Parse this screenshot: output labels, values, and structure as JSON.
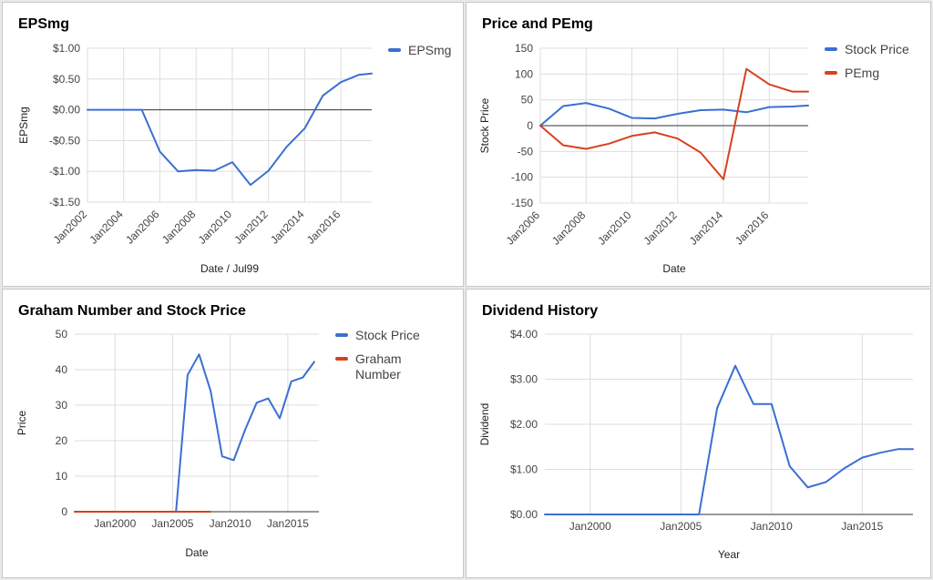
{
  "chart_data": [
    {
      "id": "eps",
      "type": "line",
      "title": "EPSmg",
      "xlabel": "Date / Jul99",
      "ylabel": "EPSmg",
      "x_tick_labels": [
        "Jan2002",
        "Jan2004",
        "Jan2006",
        "Jan2008",
        "Jan2010",
        "Jan2012",
        "Jan2014",
        "Jan2016"
      ],
      "x_tick_values": [
        2002,
        2004,
        2006,
        2008,
        2010,
        2012,
        2014,
        2016
      ],
      "x_range": [
        2002,
        2017.7
      ],
      "y_tick_labels": [
        "$1.00",
        "$0.50",
        "$0.00",
        "-$0.50",
        "-$1.00",
        "-$1.50"
      ],
      "y_tick_values": [
        1,
        0.5,
        0,
        -0.5,
        -1,
        -1.5
      ],
      "ylim": [
        -1.5,
        1
      ],
      "grid": true,
      "zero_line": true,
      "legend_position": "right",
      "series": [
        {
          "name": "EPSmg",
          "color": "#3b6fd1",
          "x": [
            2002,
            2003,
            2004,
            2005,
            2006,
            2007,
            2008,
            2009,
            2010,
            2011,
            2012,
            2013,
            2014,
            2015,
            2016,
            2017,
            2017.7
          ],
          "y": [
            0,
            0,
            0,
            0,
            -0.68,
            -1.0,
            -0.98,
            -0.99,
            -0.85,
            -1.22,
            -0.99,
            -0.6,
            -0.3,
            0.23,
            0.45,
            0.57,
            0.59
          ]
        }
      ]
    },
    {
      "id": "pe",
      "type": "line",
      "title": "Price and PEmg",
      "xlabel": "Date",
      "ylabel": "Stock Price",
      "x_tick_labels": [
        "Jan2006",
        "Jan2008",
        "Jan2010",
        "Jan2012",
        "Jan2014",
        "Jan2016"
      ],
      "x_tick_values": [
        2006,
        2008,
        2010,
        2012,
        2014,
        2016
      ],
      "x_range": [
        2006,
        2017.7
      ],
      "y_tick_labels": [
        "150",
        "100",
        "50",
        "0",
        "-50",
        "-100",
        "-150"
      ],
      "y_tick_values": [
        150,
        100,
        50,
        0,
        -50,
        -100,
        -150
      ],
      "ylim": [
        -150,
        150
      ],
      "grid": true,
      "zero_line": true,
      "legend_position": "right",
      "series": [
        {
          "name": "Stock Price",
          "color": "#3b6fd1",
          "x": [
            2006,
            2007,
            2008,
            2009,
            2010,
            2011,
            2012,
            2013,
            2014,
            2015,
            2016,
            2017,
            2017.7
          ],
          "y": [
            0,
            38,
            44,
            33,
            15,
            14,
            23,
            30,
            31,
            26,
            36,
            37,
            39
          ]
        },
        {
          "name": "PEmg",
          "color": "#d8401f",
          "x": [
            2006,
            2007,
            2008,
            2009,
            2010,
            2011,
            2012,
            2013,
            2014,
            2015,
            2016,
            2017,
            2017.7
          ],
          "y": [
            0,
            -38,
            -45,
            -35,
            -20,
            -13,
            -25,
            -52,
            -104,
            110,
            80,
            66,
            66
          ]
        }
      ]
    },
    {
      "id": "graham",
      "type": "line",
      "title": "Graham Number and Stock Price",
      "xlabel": "Date",
      "ylabel": "Price",
      "x_tick_labels": [
        "Jan2000",
        "Jan2005",
        "Jan2010",
        "Jan2015"
      ],
      "x_tick_values": [
        2000,
        2005,
        2010,
        2015
      ],
      "x_range": [
        1996.5,
        2017.7
      ],
      "y_tick_labels": [
        "50",
        "40",
        "30",
        "20",
        "10",
        "0"
      ],
      "y_tick_values": [
        50,
        40,
        30,
        20,
        10,
        0
      ],
      "ylim": [
        0,
        50
      ],
      "grid": true,
      "zero_line": false,
      "legend_position": "right",
      "series": [
        {
          "name": "Stock Price",
          "color": "#3b6fd1",
          "x": [
            1996.5,
            2005.3,
            2006.3,
            2007.3,
            2008.3,
            2009.3,
            2010.3,
            2011.3,
            2012.3,
            2013.3,
            2014.3,
            2015.3,
            2016.3,
            2017.3
          ],
          "y": [
            0,
            0,
            38.5,
            44.3,
            34,
            15.6,
            14.5,
            23.1,
            30.7,
            31.9,
            26.3,
            36.7,
            37.8,
            42.2
          ]
        },
        {
          "name": "Graham Number",
          "color": "#d8401f",
          "x": [
            1996.5,
            2008.3
          ],
          "y": [
            0,
            0
          ]
        }
      ]
    },
    {
      "id": "dividend",
      "type": "line",
      "title": "Dividend History",
      "xlabel": "Year",
      "ylabel": "Dividend",
      "x_tick_labels": [
        "Jan2000",
        "Jan2005",
        "Jan2010",
        "Jan2015"
      ],
      "x_tick_values": [
        2000,
        2005,
        2010,
        2015
      ],
      "x_range": [
        1997.5,
        2017.8
      ],
      "y_tick_labels": [
        "$4.00",
        "$3.00",
        "$2.00",
        "$1.00",
        "$0.00"
      ],
      "y_tick_values": [
        4,
        3,
        2,
        1,
        0
      ],
      "ylim": [
        0,
        4
      ],
      "grid": true,
      "zero_line": false,
      "legend_position": "none",
      "series": [
        {
          "name": "",
          "color": "#3b6fd1",
          "x": [
            1997.5,
            2006,
            2007,
            2008,
            2009,
            2010,
            2011,
            2012,
            2013,
            2014,
            2015,
            2016,
            2017,
            2017.8
          ],
          "y": [
            0,
            0,
            2.36,
            3.3,
            2.45,
            2.45,
            1.07,
            0.6,
            0.72,
            1.02,
            1.26,
            1.37,
            1.45,
            1.45
          ]
        }
      ]
    }
  ]
}
